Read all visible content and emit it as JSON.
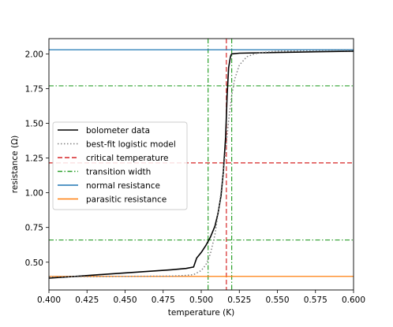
{
  "chart_data": {
    "type": "line",
    "title": "",
    "xlabel": "temperature (K)",
    "ylabel": "resistance (Ω)",
    "xlim": [
      0.4,
      0.6
    ],
    "ylim": [
      0.3,
      2.11
    ],
    "grid": false,
    "legend_position": "center-left",
    "x_ticks": [
      0.4,
      0.425,
      0.45,
      0.475,
      0.5,
      0.525,
      0.55,
      0.575,
      0.6
    ],
    "x_tick_labels": [
      "0.400",
      "0.425",
      "0.450",
      "0.475",
      "0.500",
      "0.525",
      "0.550",
      "0.575",
      "0.600"
    ],
    "y_ticks": [
      0.5,
      0.75,
      1.0,
      1.25,
      1.5,
      1.75,
      2.0
    ],
    "y_tick_labels": [
      "0.50",
      "0.75",
      "1.00",
      "1.25",
      "1.50",
      "1.75",
      "2.00"
    ],
    "series": [
      {
        "name": "bolometer data",
        "style": "solid",
        "color": "#000000",
        "x": [
          0.4,
          0.42,
          0.44,
          0.46,
          0.48,
          0.49,
          0.495,
          0.497,
          0.5,
          0.503,
          0.506,
          0.509,
          0.511,
          0.513,
          0.5145,
          0.516,
          0.517,
          0.518,
          0.519,
          0.5195,
          0.52,
          0.525,
          0.55,
          0.575,
          0.6
        ],
        "y": [
          0.385,
          0.4,
          0.415,
          0.43,
          0.445,
          0.455,
          0.465,
          0.53,
          0.57,
          0.62,
          0.68,
          0.76,
          0.85,
          0.98,
          1.15,
          1.4,
          1.7,
          1.9,
          1.97,
          1.99,
          2.0,
          2.005,
          2.01,
          2.015,
          2.02
        ]
      },
      {
        "name": "best-fit logistic model",
        "style": "dotted",
        "color": "#808080",
        "x": [
          0.4,
          0.48,
          0.49,
          0.495,
          0.5,
          0.503,
          0.506,
          0.509,
          0.512,
          0.514,
          0.516,
          0.518,
          0.52,
          0.522,
          0.525,
          0.53,
          0.535,
          0.54,
          0.55,
          0.6
        ],
        "y": [
          0.395,
          0.4,
          0.405,
          0.41,
          0.44,
          0.48,
          0.56,
          0.7,
          0.92,
          1.1,
          1.3,
          1.52,
          1.7,
          1.82,
          1.92,
          1.98,
          2.0,
          2.01,
          2.02,
          2.025
        ]
      }
    ],
    "reference_lines": [
      {
        "name": "critical temperature",
        "style": "dashed",
        "color": "#d62728",
        "vertical_x": [
          0.5165
        ],
        "horizontal_y": [
          1.215
        ]
      },
      {
        "name": "transition width",
        "style": "dashdot",
        "color": "#2ca02c",
        "vertical_x": [
          0.5045,
          0.52
        ],
        "horizontal_y": [
          0.66,
          1.77
        ]
      },
      {
        "name": "normal resistance",
        "style": "solid",
        "color": "#1f77b4",
        "horizontal_y": [
          2.03
        ]
      },
      {
        "name": "parasitic resistance",
        "style": "solid",
        "color": "#ff7f0e",
        "horizontal_y": [
          0.398
        ]
      }
    ]
  }
}
